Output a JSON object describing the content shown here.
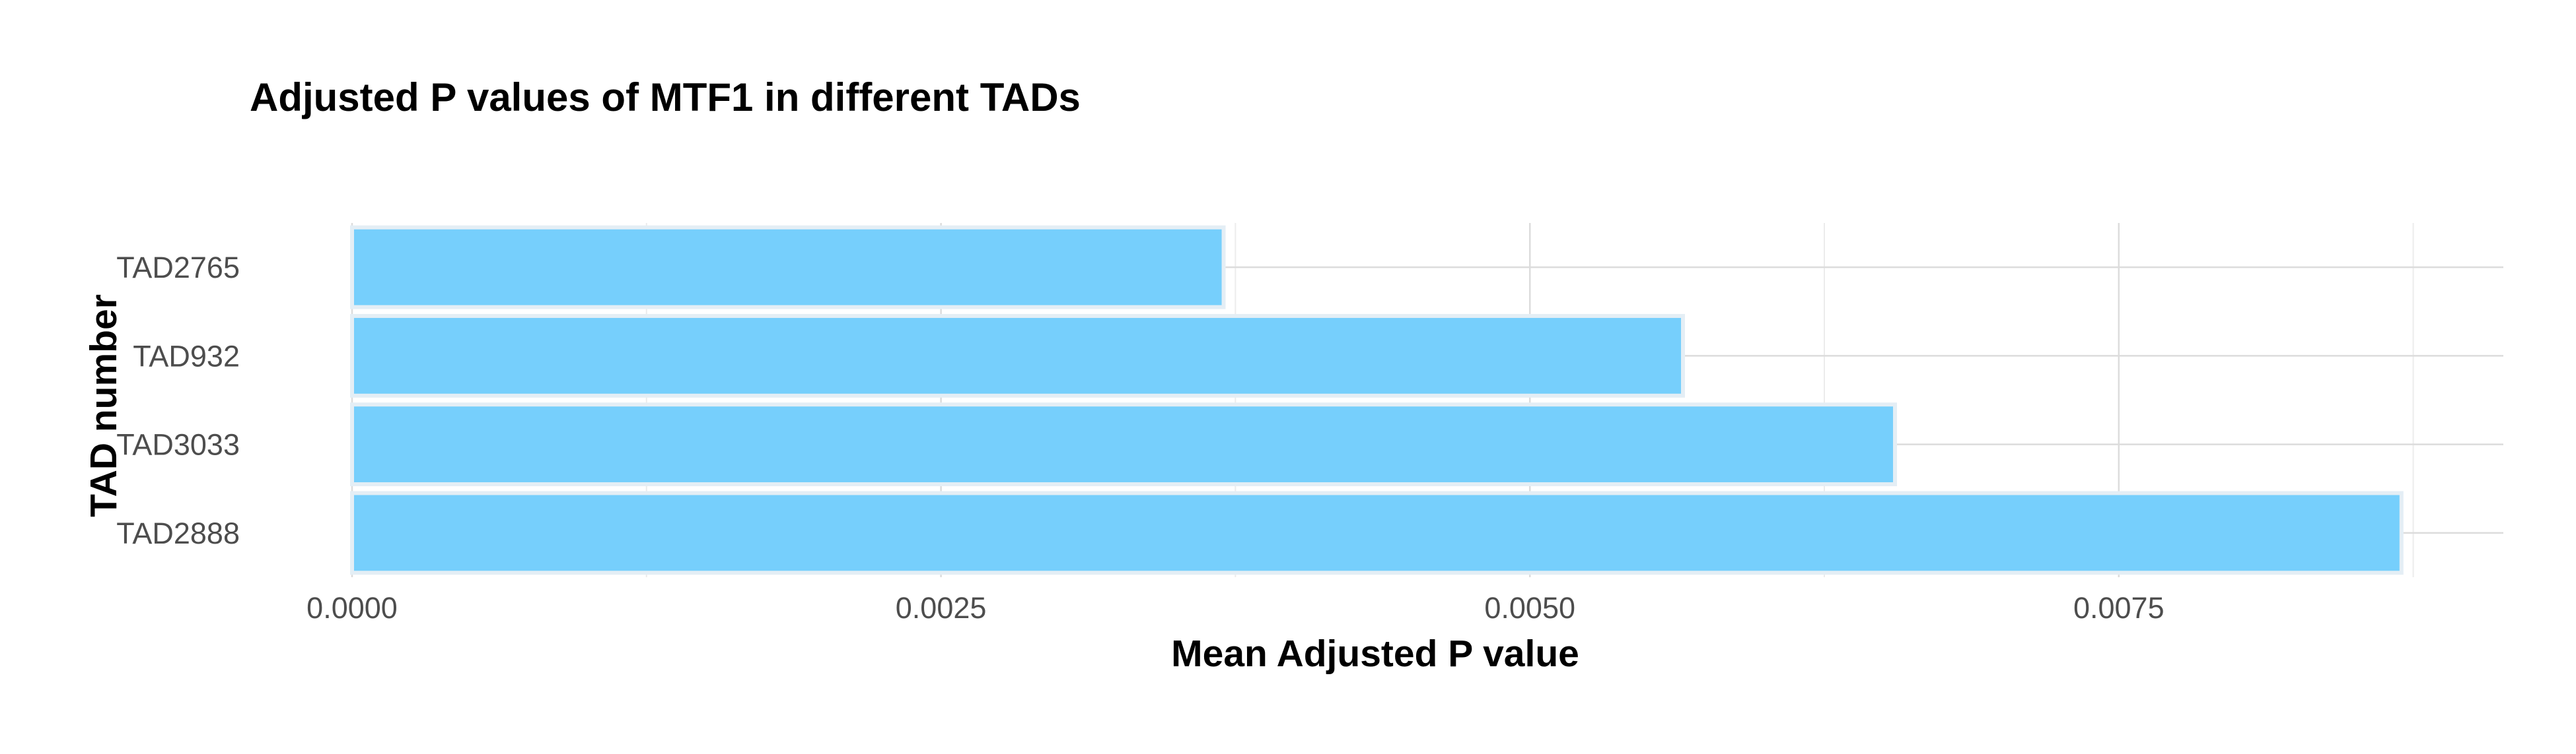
{
  "chart_data": {
    "type": "bar",
    "orientation": "horizontal",
    "title": "Adjusted P values of MTF1 in different TADs",
    "xlabel": "Mean Adjusted P value",
    "ylabel": "TAD number",
    "categories": [
      "TAD2765",
      "TAD932",
      "TAD3033",
      "TAD2888"
    ],
    "values": [
      0.0037,
      0.00565,
      0.00655,
      0.0087
    ],
    "xlim": [
      0,
      0.0091
    ],
    "xticks": [
      0.0,
      0.0025,
      0.005,
      0.0075
    ],
    "xtick_labels": [
      "0.0000",
      "0.0025",
      "0.0050",
      "0.0075"
    ],
    "grid": true,
    "legend": "none",
    "colors": {
      "bar_fill": "#76cffc",
      "bar_outline": "#e4eef5",
      "grid_major": "#dcdcdc",
      "grid_minor": "#ececec",
      "tick_text": "#4d4d4d",
      "title_text": "#000000"
    }
  }
}
